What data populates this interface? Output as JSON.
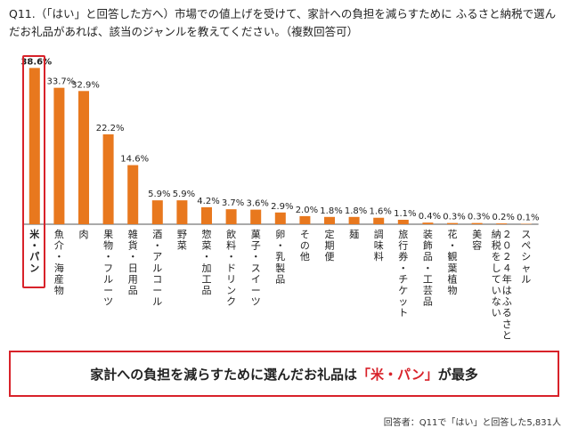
{
  "question": "Q11.（「はい」と回答した方へ）市場での値上げを受けて、家計への負担を減らすために ふるさと納税で選んだお礼品があれば、該当のジャンルを教えてください。（複数回答可）",
  "conclusion": {
    "prefix": "家計への負担を減らすために選んだお礼品は",
    "highlight": "「米・パン」",
    "suffix": "が最多"
  },
  "footnote": "回答者：Q11で「はい」と回答した5,831人",
  "colors": {
    "bar": "#e8781e",
    "accent": "#d8222a"
  },
  "chart_data": {
    "type": "bar",
    "categories": [
      "米・パン",
      "魚介・海産物",
      "肉",
      "果物・フルーツ",
      "雑貨・日用品",
      "酒・アルコール",
      "野菜",
      "惣菜・加工品",
      "飲料・ドリンク",
      "菓子・スイーツ",
      "卵・乳製品",
      "その他",
      "定期便",
      "麺",
      "調味料",
      "旅行券・チケット",
      "装飾品・工芸品",
      "花・観葉植物",
      "美容",
      "２０２４年はふるさと納税をしていない",
      "スペシャル"
    ],
    "values": [
      38.6,
      33.7,
      32.9,
      22.2,
      14.6,
      5.9,
      5.9,
      4.2,
      3.7,
      3.6,
      2.9,
      2.0,
      1.8,
      1.8,
      1.6,
      1.1,
      0.4,
      0.3,
      0.3,
      0.2,
      0.1
    ],
    "value_labels": [
      "38.6%",
      "33.7%",
      "32.9%",
      "22.2%",
      "14.6%",
      "5.9%",
      "5.9%",
      "4.2%",
      "3.7%",
      "3.6%",
      "2.9%",
      "2.0%",
      "1.8%",
      "1.8%",
      "1.6%",
      "1.1%",
      "0.4%",
      "0.3%",
      "0.3%",
      "0.2%",
      "0.1%"
    ],
    "category_lines": [
      [
        "米",
        "・",
        "パ",
        "ン"
      ],
      [
        "魚",
        "介",
        "・",
        "海",
        "産",
        "物"
      ],
      [
        "肉"
      ],
      [
        "果",
        "物",
        "・",
        "フ",
        "ル",
        "ー",
        "ツ"
      ],
      [
        "雑",
        "貨",
        "・",
        "日",
        "用",
        "品"
      ],
      [
        "酒",
        "・",
        "ア",
        "ル",
        "コ",
        "ー",
        "ル"
      ],
      [
        "野",
        "菜"
      ],
      [
        "惣",
        "菜",
        "・",
        "加",
        "工",
        "品"
      ],
      [
        "飲",
        "料",
        "・",
        "ド",
        "リ",
        "ン",
        "ク"
      ],
      [
        "菓",
        "子",
        "・",
        "ス",
        "イ",
        "ー",
        "ツ"
      ],
      [
        "卵",
        "・",
        "乳",
        "製",
        "品"
      ],
      [
        "そ",
        "の",
        "他"
      ],
      [
        "定",
        "期",
        "便"
      ],
      [
        "麺"
      ],
      [
        "調",
        "味",
        "料"
      ],
      [
        "旅",
        "行",
        "券",
        "・",
        "チ",
        "ケ",
        "ッ",
        "ト"
      ],
      [
        "装",
        "飾",
        "品",
        "・",
        "工",
        "芸",
        "品"
      ],
      [
        "花",
        "・",
        "観",
        "葉",
        "植",
        "物"
      ],
      [
        "美",
        "容"
      ],
      [
        "２",
        "０",
        "２",
        "４",
        "年",
        "は",
        "ふ",
        "る",
        "さ",
        "と"
      ],
      [
        "ス",
        "ペ",
        "シ",
        "ャ",
        "ル"
      ]
    ],
    "category_lines2": {
      "19": [
        "納",
        "税",
        "を",
        "し",
        "て",
        "い",
        "な",
        "い"
      ]
    },
    "ylim": [
      0,
      40
    ],
    "title": "",
    "xlabel": "",
    "ylabel": "",
    "grid": false
  }
}
